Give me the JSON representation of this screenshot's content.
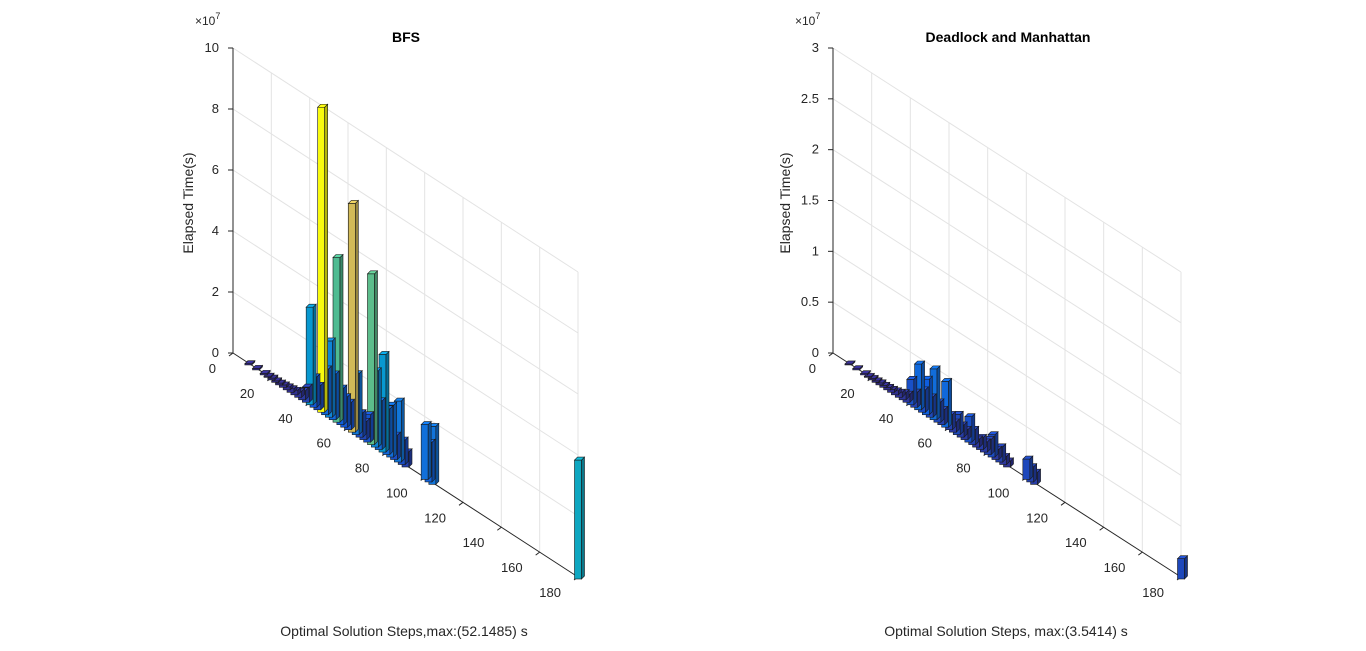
{
  "chart_data": [
    {
      "type": "bar3",
      "title": "BFS",
      "ylabel": "Elapsed Time(s)",
      "xlabel": "Optimal Solution Steps,max:(52.1485) s",
      "exponent_base": "×10",
      "exponent_power": "7",
      "zlim": [
        0,
        10
      ],
      "z_ticks": [
        "0",
        "2",
        "4",
        "6",
        "8",
        "10"
      ],
      "x_ticks": [
        "0",
        "20",
        "40",
        "60",
        "80",
        "100",
        "120",
        "140",
        "160",
        "180"
      ],
      "xlim": [
        0,
        180
      ],
      "grid": true,
      "colormap": "parula",
      "bars": [
        {
          "x": 8,
          "v": 0.04
        },
        {
          "x": 12,
          "v": 0.05
        },
        {
          "x": 16,
          "v": 0.05
        },
        {
          "x": 18,
          "v": 0.04
        },
        {
          "x": 20,
          "v": 0.06
        },
        {
          "x": 22,
          "v": 0.05
        },
        {
          "x": 24,
          "v": 0.06
        },
        {
          "x": 26,
          "v": 0.08
        },
        {
          "x": 28,
          "v": 0.1
        },
        {
          "x": 30,
          "v": 0.12
        },
        {
          "x": 32,
          "v": 0.15
        },
        {
          "x": 34,
          "v": 0.2
        },
        {
          "x": 36,
          "v": 0.3
        },
        {
          "x": 38,
          "v": 0.5
        },
        {
          "x": 40,
          "v": 3.2
        },
        {
          "x": 42,
          "v": 1.0
        },
        {
          "x": 44,
          "v": 0.8
        },
        {
          "x": 46,
          "v": 10.0
        },
        {
          "x": 48,
          "v": 1.5
        },
        {
          "x": 50,
          "v": 2.5
        },
        {
          "x": 52,
          "v": 1.5
        },
        {
          "x": 54,
          "v": 5.4
        },
        {
          "x": 56,
          "v": 1.2
        },
        {
          "x": 58,
          "v": 1.0
        },
        {
          "x": 60,
          "v": 0.9
        },
        {
          "x": 62,
          "v": 7.5
        },
        {
          "x": 64,
          "v": 2.0
        },
        {
          "x": 66,
          "v": 0.8
        },
        {
          "x": 68,
          "v": 0.6
        },
        {
          "x": 70,
          "v": 0.9
        },
        {
          "x": 72,
          "v": 5.6
        },
        {
          "x": 74,
          "v": 2.5
        },
        {
          "x": 76,
          "v": 1.6
        },
        {
          "x": 78,
          "v": 3.2
        },
        {
          "x": 80,
          "v": 1.5
        },
        {
          "x": 82,
          "v": 1.7
        },
        {
          "x": 84,
          "v": 0.8
        },
        {
          "x": 86,
          "v": 2.0
        },
        {
          "x": 88,
          "v": 0.8
        },
        {
          "x": 90,
          "v": 0.5
        },
        {
          "x": 100,
          "v": 1.8
        },
        {
          "x": 102,
          "v": 1.3
        },
        {
          "x": 104,
          "v": 1.9
        },
        {
          "x": 180,
          "v": 3.9
        }
      ]
    },
    {
      "type": "bar3",
      "title": "Deadlock and Manhattan",
      "ylabel": "Elapsed Time(s)",
      "xlabel": "Optimal Solution Steps, max:(3.5414) s",
      "exponent_base": "×10",
      "exponent_power": "7",
      "zlim": [
        0,
        3
      ],
      "z_ticks": [
        "0",
        "0.5",
        "1",
        "1.5",
        "2",
        "2.5",
        "3"
      ],
      "x_ticks": [
        "0",
        "20",
        "40",
        "60",
        "80",
        "100",
        "120",
        "140",
        "160",
        "180"
      ],
      "xlim": [
        0,
        180
      ],
      "grid": true,
      "colormap": "parula",
      "bars": [
        {
          "x": 8,
          "v": 0.01
        },
        {
          "x": 12,
          "v": 0.012
        },
        {
          "x": 16,
          "v": 0.012
        },
        {
          "x": 18,
          "v": 0.01
        },
        {
          "x": 20,
          "v": 0.015
        },
        {
          "x": 22,
          "v": 0.015
        },
        {
          "x": 24,
          "v": 0.02
        },
        {
          "x": 26,
          "v": 0.02
        },
        {
          "x": 28,
          "v": 0.025
        },
        {
          "x": 30,
          "v": 0.03
        },
        {
          "x": 32,
          "v": 0.04
        },
        {
          "x": 34,
          "v": 0.05
        },
        {
          "x": 36,
          "v": 0.07
        },
        {
          "x": 38,
          "v": 0.08
        },
        {
          "x": 40,
          "v": 0.25
        },
        {
          "x": 42,
          "v": 0.15
        },
        {
          "x": 44,
          "v": 0.45
        },
        {
          "x": 46,
          "v": 0.22
        },
        {
          "x": 48,
          "v": 0.35
        },
        {
          "x": 50,
          "v": 0.2
        },
        {
          "x": 52,
          "v": 0.5
        },
        {
          "x": 54,
          "v": 0.2
        },
        {
          "x": 56,
          "v": 0.15
        },
        {
          "x": 58,
          "v": 0.45
        },
        {
          "x": 60,
          "v": 0.15
        },
        {
          "x": 62,
          "v": 0.1
        },
        {
          "x": 64,
          "v": 0.2
        },
        {
          "x": 66,
          "v": 0.12
        },
        {
          "x": 68,
          "v": 0.1
        },
        {
          "x": 70,
          "v": 0.25
        },
        {
          "x": 72,
          "v": 0.15
        },
        {
          "x": 74,
          "v": 0.08
        },
        {
          "x": 76,
          "v": 0.12
        },
        {
          "x": 78,
          "v": 0.1
        },
        {
          "x": 80,
          "v": 0.15
        },
        {
          "x": 82,
          "v": 0.22
        },
        {
          "x": 84,
          "v": 0.1
        },
        {
          "x": 86,
          "v": 0.15
        },
        {
          "x": 88,
          "v": 0.08
        },
        {
          "x": 90,
          "v": 0.06
        },
        {
          "x": 100,
          "v": 0.2
        },
        {
          "x": 102,
          "v": 0.15
        },
        {
          "x": 104,
          "v": 0.12
        },
        {
          "x": 180,
          "v": 0.2
        }
      ]
    }
  ]
}
